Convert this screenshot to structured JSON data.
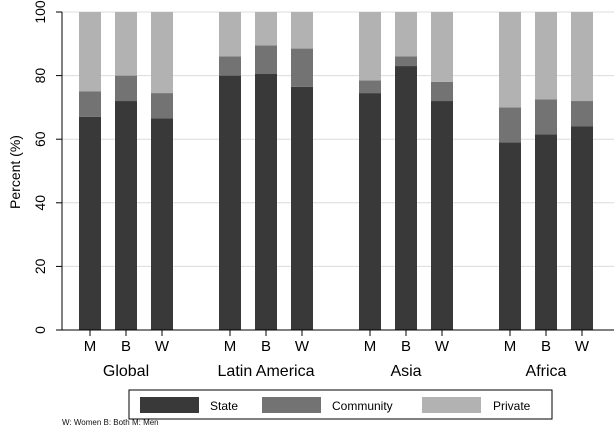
{
  "chart_data": {
    "type": "bar",
    "stacked": true,
    "ylabel": "Percent (%)",
    "ylim": [
      0,
      100
    ],
    "yticks": [
      0,
      20,
      40,
      60,
      80,
      100
    ],
    "grid": true,
    "legend_position": "bottom",
    "footnote": "W: Women B: Both M: Men",
    "groups": [
      {
        "label": "Global",
        "bars": [
          {
            "label": "M",
            "values": [
              67,
              8,
              25
            ]
          },
          {
            "label": "B",
            "values": [
              72,
              8,
              20
            ]
          },
          {
            "label": "W",
            "values": [
              66.5,
              8,
              25.5
            ]
          }
        ]
      },
      {
        "label": "Latin America",
        "bars": [
          {
            "label": "M",
            "values": [
              80,
              6,
              14
            ]
          },
          {
            "label": "B",
            "values": [
              80.5,
              9,
              10.5
            ]
          },
          {
            "label": "W",
            "values": [
              76.5,
              12,
              11.5
            ]
          }
        ]
      },
      {
        "label": "Asia",
        "bars": [
          {
            "label": "M",
            "values": [
              74.5,
              4,
              21.5
            ]
          },
          {
            "label": "B",
            "values": [
              83,
              3,
              14
            ]
          },
          {
            "label": "W",
            "values": [
              72,
              6,
              22
            ]
          }
        ]
      },
      {
        "label": "Africa",
        "bars": [
          {
            "label": "M",
            "values": [
              59,
              11,
              30
            ]
          },
          {
            "label": "B",
            "values": [
              61.5,
              11,
              27.5
            ]
          },
          {
            "label": "W",
            "values": [
              64,
              8,
              28
            ]
          }
        ]
      }
    ],
    "series": [
      {
        "name": "State",
        "color": "#393939"
      },
      {
        "name": "Community",
        "color": "#737373"
      },
      {
        "name": "Private",
        "color": "#b2b2b2"
      }
    ]
  }
}
